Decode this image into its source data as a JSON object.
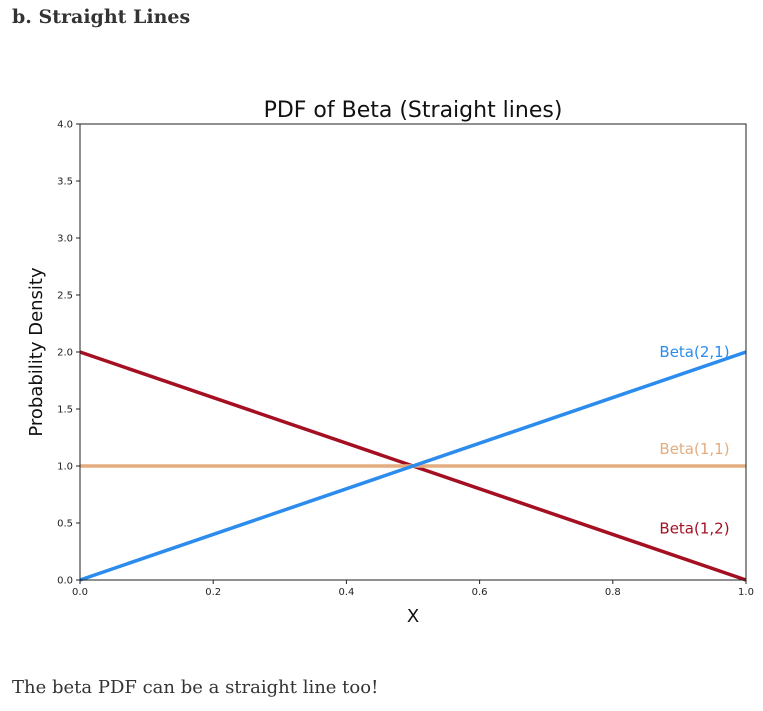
{
  "heading": "b. Straight Lines",
  "caption": "The beta PDF can be a straight line too!",
  "chart_data": {
    "type": "line",
    "title": "PDF of Beta (Straight lines)",
    "xlabel": "X",
    "ylabel": "Probability Density",
    "xlim": [
      0.0,
      1.0
    ],
    "ylim": [
      0.0,
      4.0
    ],
    "xticks": [
      "0.0",
      "0.2",
      "0.4",
      "0.6",
      "0.8",
      "1.0"
    ],
    "yticks": [
      "0.0",
      "0.5",
      "1.0",
      "1.5",
      "2.0",
      "2.5",
      "3.0",
      "3.5",
      "4.0"
    ],
    "grid": false,
    "legend": "none",
    "series": [
      {
        "name": "Beta(1,2)",
        "color": "#a50f22",
        "x": [
          0.0,
          1.0
        ],
        "y": [
          2.0,
          0.0
        ],
        "label_at": [
          0.87,
          0.45
        ]
      },
      {
        "name": "Beta(1,1)",
        "color": "#e3ad80",
        "x": [
          0.0,
          1.0
        ],
        "y": [
          1.0,
          1.0
        ],
        "label_at": [
          0.87,
          1.15
        ]
      },
      {
        "name": "Beta(2,1)",
        "color": "#2b8cee",
        "x": [
          0.0,
          1.0
        ],
        "y": [
          0.0,
          2.0
        ],
        "label_at": [
          0.87,
          2.0
        ]
      }
    ]
  }
}
